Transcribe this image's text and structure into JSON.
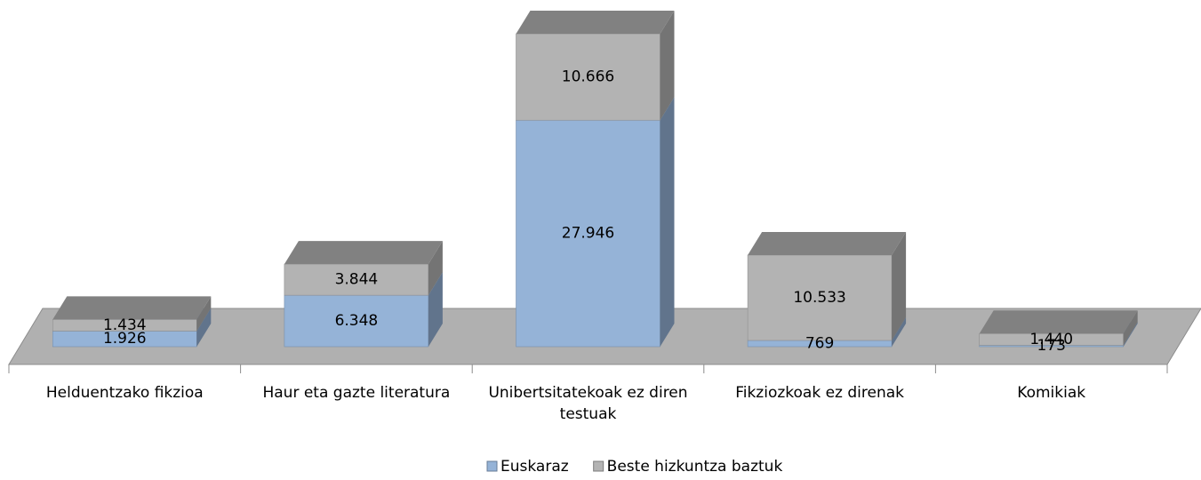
{
  "chart_data": {
    "type": "bar3d_stacked",
    "categories": [
      "Helduentzako fikzioa",
      "Haur eta gazte literatura",
      "Unibertsitatekoak ez diren testuak",
      "Fikziozkoak ez direnak",
      "Komikiak"
    ],
    "series": [
      {
        "name": "Euskaraz",
        "color": "#95b3d7",
        "values": [
          1926,
          6348,
          27946,
          769,
          173
        ],
        "value_labels": [
          "1.926",
          "6.348",
          "27.946",
          "769",
          "173"
        ]
      },
      {
        "name": "Beste hizkuntza baztuk",
        "color": "#b3b3b3",
        "values": [
          1434,
          3844,
          10666,
          10533,
          1440
        ],
        "value_labels": [
          "1.434",
          "3.844",
          "10.666",
          "10.533",
          "1.440"
        ]
      }
    ],
    "legend": "bottom"
  }
}
